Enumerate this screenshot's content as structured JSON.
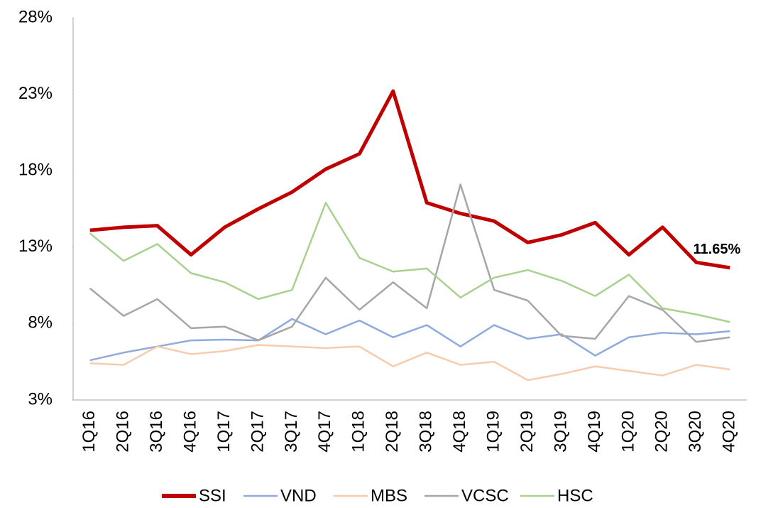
{
  "chart_data": {
    "type": "line",
    "categories": [
      "1Q16",
      "2Q16",
      "3Q16",
      "4Q16",
      "1Q17",
      "2Q17",
      "3Q17",
      "4Q17",
      "1Q18",
      "2Q18",
      "3Q18",
      "4Q18",
      "1Q19",
      "2Q19",
      "3Q19",
      "4Q19",
      "1Q20",
      "2Q20",
      "3Q20",
      "4Q20"
    ],
    "series": [
      {
        "name": "SSI",
        "color": "#c00000",
        "values": [
          14.1,
          14.3,
          14.4,
          12.5,
          14.3,
          15.5,
          16.6,
          18.1,
          19.1,
          23.2,
          15.9,
          15.2,
          14.7,
          13.3,
          13.8,
          14.6,
          12.5,
          14.3,
          12.0,
          11.65
        ],
        "value_labels": [
          null,
          null,
          null,
          null,
          null,
          null,
          null,
          null,
          null,
          null,
          null,
          null,
          null,
          null,
          null,
          null,
          null,
          null,
          null,
          "11.65%"
        ]
      },
      {
        "name": "VND",
        "color": "#8faadc",
        "values": [
          5.6,
          6.1,
          6.5,
          6.9,
          6.95,
          6.9,
          8.3,
          7.3,
          8.2,
          7.1,
          7.9,
          6.5,
          7.9,
          7.0,
          7.3,
          5.9,
          7.1,
          7.4,
          7.3,
          7.5
        ]
      },
      {
        "name": "MBS",
        "color": "#f8cbad",
        "values": [
          5.4,
          5.3,
          6.5,
          6.0,
          6.2,
          6.6,
          6.5,
          6.4,
          6.5,
          5.2,
          6.1,
          5.3,
          5.5,
          4.3,
          4.7,
          5.2,
          4.9,
          4.6,
          5.3,
          5.0
        ]
      },
      {
        "name": "VCSC",
        "color": "#a6a6a6",
        "values": [
          10.3,
          8.5,
          9.6,
          7.7,
          7.8,
          6.9,
          7.8,
          11.0,
          8.9,
          10.7,
          9.0,
          17.1,
          10.2,
          9.5,
          7.2,
          7.0,
          9.8,
          8.9,
          6.8,
          7.1
        ]
      },
      {
        "name": "HSC",
        "color": "#a9d18e",
        "values": [
          13.9,
          12.1,
          13.2,
          11.3,
          10.7,
          9.6,
          10.2,
          15.9,
          12.3,
          11.4,
          11.6,
          9.7,
          11.0,
          11.5,
          10.8,
          9.8,
          11.2,
          9.0,
          8.6,
          8.1
        ]
      }
    ],
    "ylim": [
      3,
      28
    ],
    "yticks": [
      {
        "value": 3,
        "label": "3%"
      },
      {
        "value": 8,
        "label": "8%"
      },
      {
        "value": 13,
        "label": "13%"
      },
      {
        "value": 18,
        "label": "18%"
      },
      {
        "value": 23,
        "label": "23%"
      },
      {
        "value": 28,
        "label": "28%"
      }
    ],
    "legend": "bottom"
  }
}
